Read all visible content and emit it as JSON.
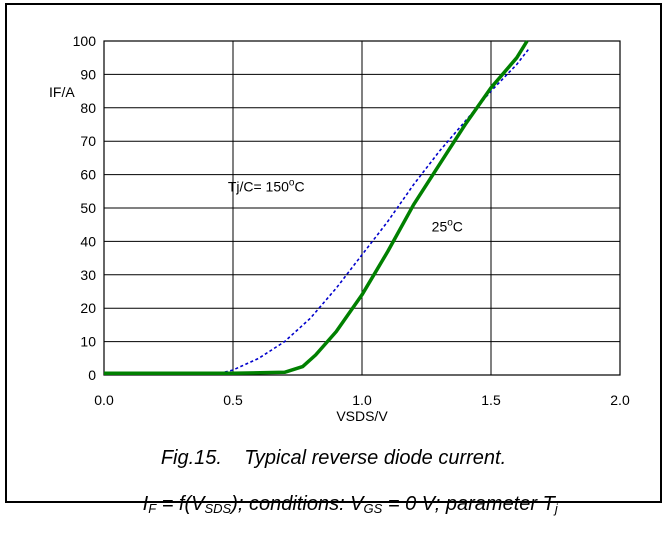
{
  "chart_data": {
    "type": "line",
    "xlabel": "VSDS/V",
    "ylabel": "IF/A",
    "xlim": [
      0.0,
      2.0
    ],
    "ylim": [
      0,
      100
    ],
    "x_ticks": [
      "0.0",
      "0.5",
      "1.0",
      "1.5",
      "2.0"
    ],
    "y_ticks": [
      "0",
      "10",
      "20",
      "30",
      "40",
      "50",
      "60",
      "70",
      "80",
      "90",
      "100"
    ],
    "grid": true,
    "series": [
      {
        "name": "Tj/C= 150°C",
        "color": "#0000cc",
        "style": "dotted",
        "points": [
          [
            0.0,
            0.5
          ],
          [
            0.45,
            0.5
          ],
          [
            0.5,
            1.5
          ],
          [
            0.6,
            5
          ],
          [
            0.7,
            10
          ],
          [
            0.8,
            17
          ],
          [
            0.9,
            26
          ],
          [
            1.0,
            36
          ],
          [
            1.1,
            46
          ],
          [
            1.2,
            57
          ],
          [
            1.3,
            67
          ],
          [
            1.4,
            76
          ],
          [
            1.5,
            85
          ],
          [
            1.6,
            93
          ],
          [
            1.65,
            98
          ]
        ]
      },
      {
        "name": "25°C",
        "color": "#008000",
        "style": "solid",
        "points": [
          [
            0.0,
            0.5
          ],
          [
            0.5,
            0.5
          ],
          [
            0.7,
            0.8
          ],
          [
            0.77,
            2.5
          ],
          [
            0.82,
            6
          ],
          [
            0.9,
            13
          ],
          [
            1.0,
            24
          ],
          [
            1.1,
            37
          ],
          [
            1.2,
            51
          ],
          [
            1.3,
            63
          ],
          [
            1.4,
            75
          ],
          [
            1.5,
            86
          ],
          [
            1.6,
            95
          ],
          [
            1.64,
            100
          ]
        ]
      }
    ],
    "annotations": [
      {
        "text": "Tj/C= 150°C",
        "x": 0.48,
        "y": 55
      },
      {
        "text": "25°C",
        "x": 1.27,
        "y": 43
      }
    ]
  },
  "caption": {
    "line1": "Fig.15.    Typical reverse diode current.",
    "line2_parts": [
      "I",
      "F",
      " = f(V",
      "SDS",
      "); conditions: V",
      "GS",
      " = 0 V; parameter T",
      "j"
    ]
  }
}
